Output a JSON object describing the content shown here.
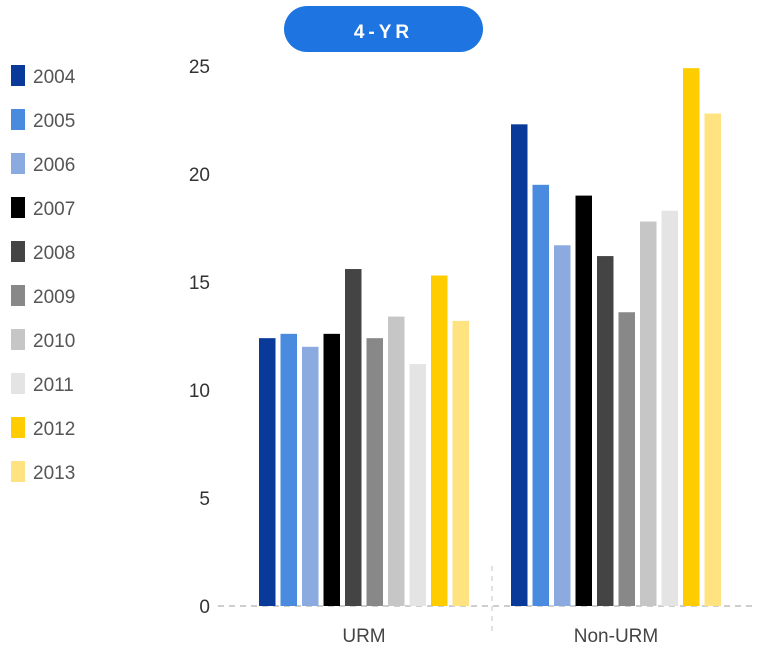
{
  "chart_data": {
    "type": "bar",
    "badge": "4-YR",
    "categories": [
      "URM",
      "Non-URM"
    ],
    "ylim": [
      0,
      25
    ],
    "yticks": [
      "0",
      "5",
      "10",
      "15",
      "20",
      "25"
    ],
    "grid": false,
    "legend_position": "left",
    "series": [
      {
        "name": "2004",
        "color": "#0a3a99",
        "values": [
          12.4,
          22.3
        ]
      },
      {
        "name": "2005",
        "color": "#4a8be0",
        "values": [
          12.6,
          19.5
        ]
      },
      {
        "name": "2006",
        "color": "#8aaae0",
        "values": [
          12.0,
          16.7
        ]
      },
      {
        "name": "2007",
        "color": "#000000",
        "values": [
          12.6,
          19.0
        ]
      },
      {
        "name": "2008",
        "color": "#444444",
        "values": [
          15.6,
          16.2
        ]
      },
      {
        "name": "2009",
        "color": "#888888",
        "values": [
          12.4,
          13.6
        ]
      },
      {
        "name": "2010",
        "color": "#c6c6c6",
        "values": [
          13.4,
          17.8
        ]
      },
      {
        "name": "2011",
        "color": "#e4e4e4",
        "values": [
          11.2,
          18.3
        ]
      },
      {
        "name": "2012",
        "color": "#ffcc00",
        "values": [
          15.3,
          24.9
        ]
      },
      {
        "name": "2013",
        "color": "#ffe380",
        "values": [
          13.2,
          22.8
        ]
      }
    ],
    "badge_color": "#1e74e0"
  }
}
